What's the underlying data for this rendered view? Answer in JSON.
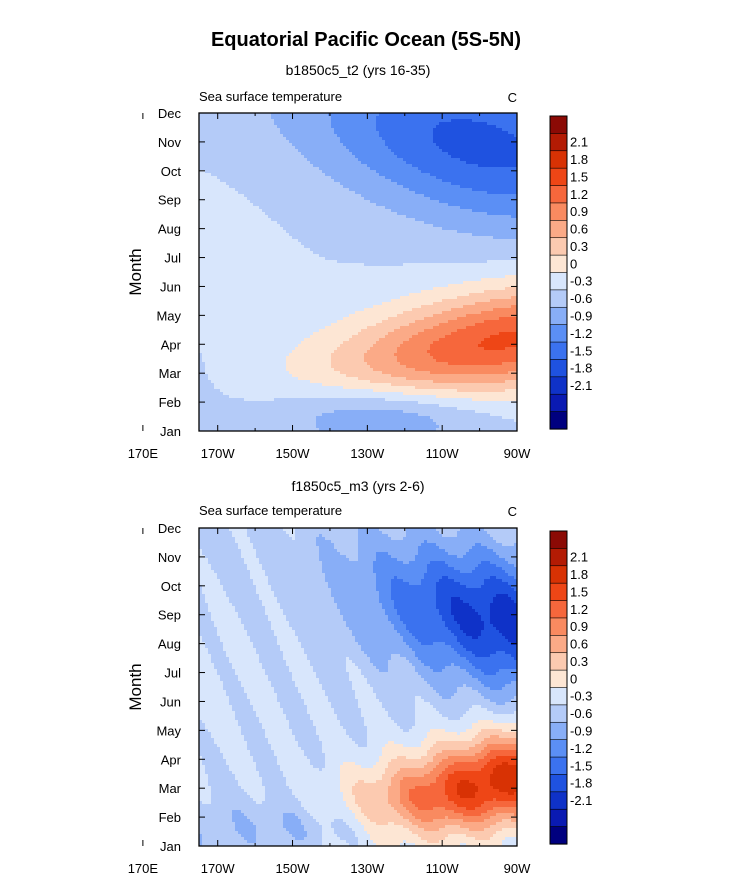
{
  "figure": {
    "title": "Equatorial Pacific Ocean (5S-5N)",
    "colors": {
      "levels": [
        "#00007f",
        "#0a1ab2",
        "#0f32c8",
        "#1f52e0",
        "#3b72ef",
        "#5b8ff5",
        "#88aef7",
        "#b4cbf8",
        "#d8e6fc",
        "#fde6d4",
        "#fccab0",
        "#fbaa87",
        "#f98a60",
        "#f6673c",
        "#ee4616",
        "#d83204",
        "#b31b04",
        "#8b0a05"
      ]
    },
    "colorbar": {
      "labels": [
        "2.1",
        "1.8",
        "1.5",
        "1.2",
        "0.9",
        "0.6",
        "0.3",
        "0",
        "-0.3",
        "-0.6",
        "-0.9",
        "-1.2",
        "-1.5",
        "-1.8",
        "-2.1"
      ]
    }
  },
  "chart_data": [
    {
      "type": "heatmap",
      "title": "b1850c5_t2 (yrs 16-35)",
      "left_label": "Sea surface temperature",
      "units": "C",
      "ylabel": "Month",
      "xlabel": "",
      "x_ticks": [
        "170E",
        "170W",
        "150W",
        "130W",
        "110W",
        "90W"
      ],
      "y_ticks": [
        "Jan",
        "Feb",
        "Mar",
        "Apr",
        "May",
        "Jun",
        "Jul",
        "Aug",
        "Sep",
        "Oct",
        "Nov",
        "Dec"
      ],
      "x_range_deg": [
        -175,
        -90
      ],
      "y_range_months": [
        1,
        12
      ],
      "levels": [
        -2.1,
        -1.8,
        -1.5,
        -1.2,
        -0.9,
        -0.6,
        -0.3,
        0,
        0.3,
        0.6,
        0.9,
        1.2,
        1.5,
        1.8,
        2.1
      ],
      "warm_peak": {
        "lon": -93,
        "month": 4.0,
        "value": 1.9
      },
      "cold_peak": {
        "lon": -100,
        "month": 10.7,
        "value": -1.3
      },
      "west_limit_values": {
        "Jan": 0.1,
        "Apr": -0.1,
        "Jun": 0.15,
        "Aug": 0.15,
        "Oct": -0.15,
        "Dec": -0.2
      }
    },
    {
      "type": "heatmap",
      "title": "f1850c5_m3 (yrs 2-6)",
      "left_label": "Sea surface temperature",
      "units": "C",
      "ylabel": "Month",
      "xlabel": "",
      "x_ticks": [
        "170E",
        "170W",
        "150W",
        "130W",
        "110W",
        "90W"
      ],
      "y_ticks": [
        "Jan",
        "Feb",
        "Mar",
        "Apr",
        "May",
        "Jun",
        "Jul",
        "Aug",
        "Sep",
        "Oct",
        "Nov",
        "Dec"
      ],
      "x_range_deg": [
        -175,
        -90
      ],
      "y_range_months": [
        1,
        12
      ],
      "levels": [
        -2.1,
        -1.8,
        -1.5,
        -1.2,
        -0.9,
        -0.6,
        -0.3,
        0,
        0.3,
        0.6,
        0.9,
        1.2,
        1.5,
        1.8,
        2.1
      ],
      "warm_peak": {
        "lon": -94,
        "month": 3.3,
        "value": 2.2
      },
      "cold_peak": {
        "lon": -93,
        "month": 8.6,
        "value": -1.6
      },
      "west_limit_values": {
        "Jan": -0.1,
        "Apr": -0.15,
        "Jun": 0.2,
        "Aug": 0.1,
        "Oct": 0.1,
        "Dec": 0.15
      }
    }
  ]
}
